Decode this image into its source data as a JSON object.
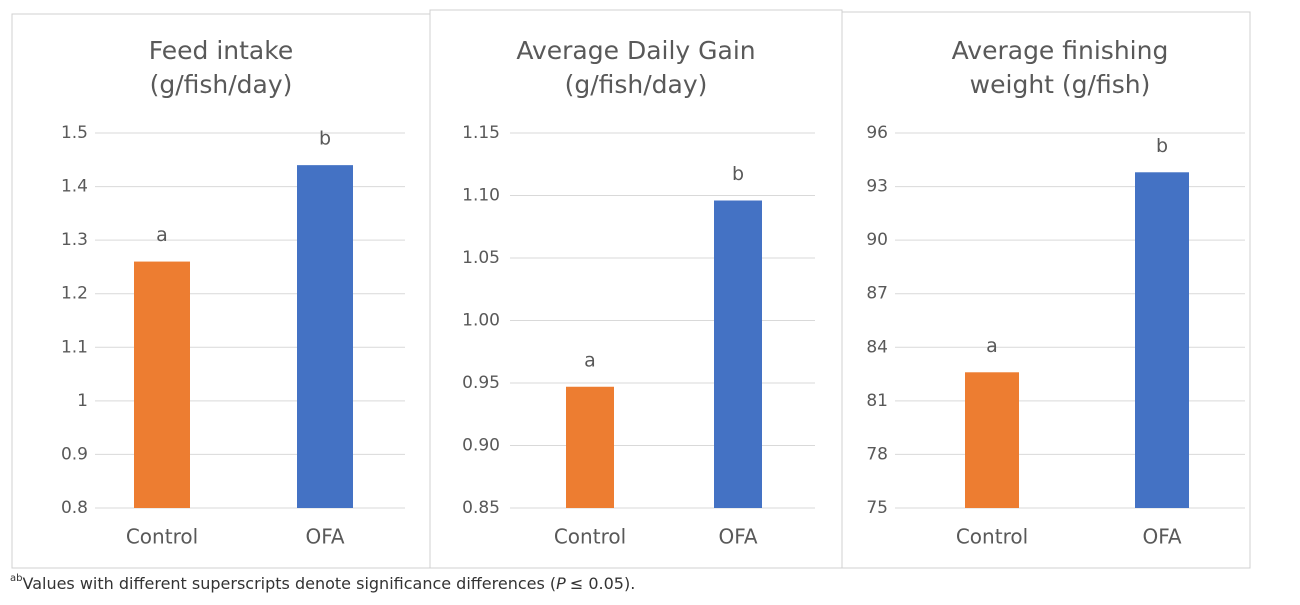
{
  "chart_data": [
    {
      "type": "bar",
      "title": [
        "Feed intake",
        "(g/fish/day)"
      ],
      "categories": [
        "Control",
        "OFA"
      ],
      "values": [
        1.26,
        1.44
      ],
      "colors": [
        "#ed7d31",
        "#4472c4"
      ],
      "annotations": [
        "a",
        "b"
      ],
      "ylim": [
        0.8,
        1.5
      ],
      "yticks": [
        0.8,
        0.9,
        1,
        1.1,
        1.2,
        1.3,
        1.4,
        1.5
      ],
      "grid": true
    },
    {
      "type": "bar",
      "title": [
        "Average Daily Gain",
        "(g/fish/day)"
      ],
      "categories": [
        "Control",
        "OFA"
      ],
      "values": [
        0.947,
        1.096
      ],
      "colors": [
        "#ed7d31",
        "#4472c4"
      ],
      "annotations": [
        "a",
        "b"
      ],
      "ylim": [
        0.85,
        1.15
      ],
      "yticks": [
        0.85,
        {
          "value": 0.9,
          "label": "0.90"
        },
        0.95,
        {
          "value": 1,
          "label": "1.00"
        },
        1.05,
        {
          "value": 1.1,
          "label": "1.10"
        },
        1.15
      ],
      "grid": true
    },
    {
      "type": "bar",
      "title": [
        "Average finishing",
        "weight (g/fish)"
      ],
      "categories": [
        "Control",
        "OFA"
      ],
      "values": [
        82.6,
        93.8
      ],
      "colors": [
        "#ed7d31",
        "#4472c4"
      ],
      "annotations": [
        "a",
        "b"
      ],
      "ylim": [
        75,
        96
      ],
      "yticks": [
        75,
        78,
        81,
        84,
        87,
        90,
        93,
        96
      ],
      "grid": true
    }
  ],
  "footnote": {
    "superscript": "ab",
    "text": "Values with different superscripts denote significance differences (",
    "italic": "P",
    "rest": "≤ 0.05)."
  }
}
